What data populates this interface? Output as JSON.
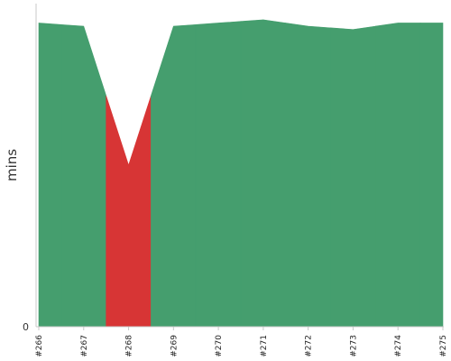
{
  "chart_data": {
    "type": "area",
    "title": "",
    "xlabel": "",
    "ylabel": "mins",
    "ylim": [
      0,
      100
    ],
    "y_ticks": [
      "0"
    ],
    "grid": false,
    "categories": [
      "#266",
      "#267",
      "#268",
      "#269",
      "#270",
      "#271",
      "#272",
      "#273",
      "#274",
      "#275"
    ],
    "values": [
      94,
      93,
      50,
      93,
      94,
      95,
      93,
      92,
      94,
      94
    ],
    "status": [
      "success",
      "success",
      "failure",
      "success",
      "success",
      "success",
      "success",
      "success",
      "success",
      "success"
    ],
    "colors": {
      "success": "#459e6e",
      "failure": "#d73535"
    }
  }
}
